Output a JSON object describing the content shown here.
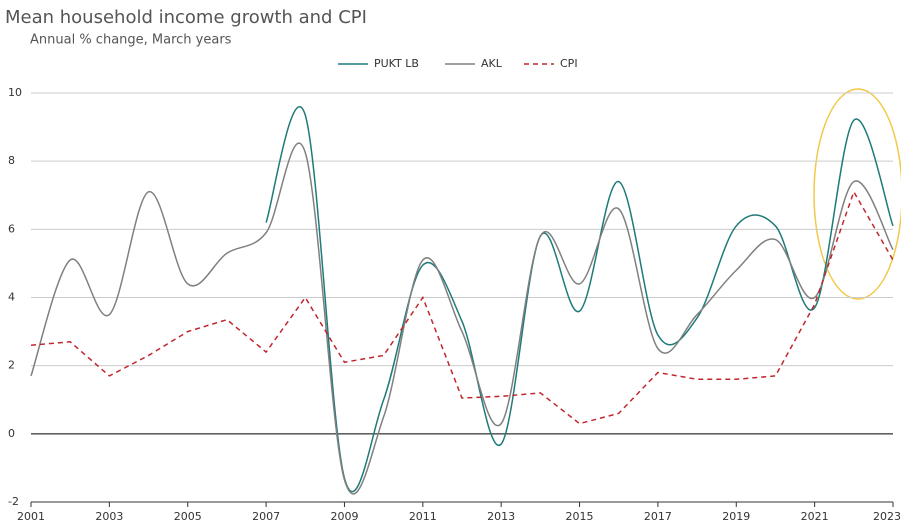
{
  "chart_data": {
    "type": "line",
    "title": "Mean household income growth and CPI",
    "subtitle": "Annual % change, March years",
    "x": [
      2001,
      2002,
      2003,
      2004,
      2005,
      2006,
      2007,
      2008,
      2009,
      2010,
      2011,
      2012,
      2013,
      2014,
      2015,
      2016,
      2017,
      2018,
      2019,
      2020,
      2021,
      2022,
      2023
    ],
    "series": [
      {
        "name": "PUKT LB",
        "color": "#1f7a7a",
        "style": "solid",
        "smooth": true,
        "values": [
          null,
          null,
          null,
          null,
          null,
          null,
          6.2,
          9.35,
          -1.3,
          1.0,
          4.95,
          3.3,
          -0.3,
          5.8,
          3.6,
          7.4,
          2.9,
          3.4,
          6.1,
          6.1,
          3.7,
          9.2,
          6.1
        ]
      },
      {
        "name": "AKL",
        "color": "#808080",
        "style": "solid",
        "smooth": true,
        "values": [
          1.7,
          5.1,
          3.5,
          7.1,
          4.4,
          5.3,
          5.9,
          8.25,
          -1.35,
          0.5,
          5.1,
          3.0,
          0.3,
          5.8,
          4.4,
          6.6,
          2.5,
          3.5,
          4.8,
          5.7,
          4.0,
          7.4,
          5.4
        ]
      },
      {
        "name": "CPI",
        "color": "#c0272d",
        "style": "dashed",
        "smooth": false,
        "values": [
          2.6,
          2.7,
          1.7,
          2.3,
          3.0,
          3.35,
          2.4,
          4.0,
          2.1,
          2.3,
          4.0,
          1.05,
          1.1,
          1.2,
          0.3,
          0.6,
          1.8,
          1.6,
          1.6,
          1.7,
          3.8,
          7.1,
          5.1
        ]
      }
    ],
    "xlim": [
      2001,
      2023
    ],
    "xticks": [
      2001,
      2003,
      2005,
      2007,
      2009,
      2011,
      2013,
      2015,
      2017,
      2019,
      2021,
      2023
    ],
    "ylim": [
      -2,
      10
    ],
    "yticks": [
      -2,
      0,
      2,
      4,
      6,
      8,
      10
    ],
    "grid": true,
    "legend": "top"
  }
}
